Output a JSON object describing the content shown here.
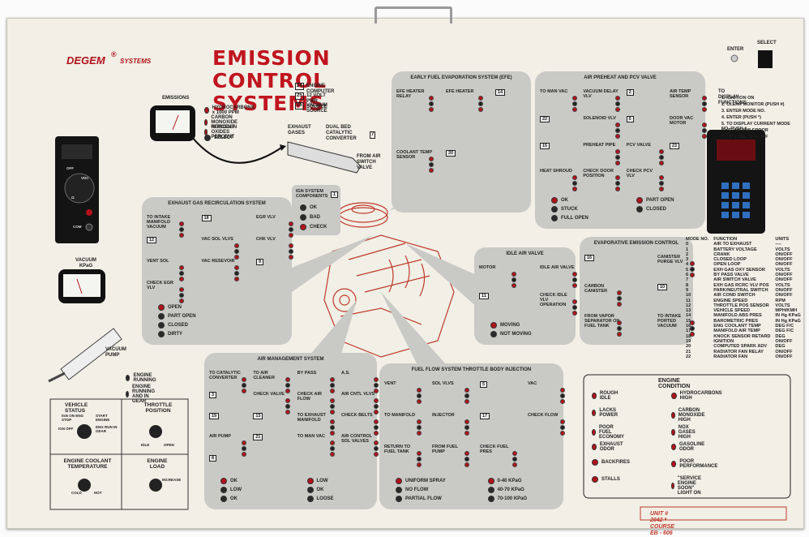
{
  "brand": {
    "name": "DEGEM",
    "reg": "®",
    "suffix": "SYSTEMS"
  },
  "title": "EMISSION CONTROL SYSTEMS",
  "controls": {
    "enter": "ENTER",
    "select": "SELECT"
  },
  "emissions": {
    "title": "EMISSIONS",
    "items": [
      "HYDROCARBONS x 1000 PPM",
      "CARBON MONOXIDE PERCENT",
      "NITROGEN OXIDES PERCENT",
      "SELECT"
    ]
  },
  "sources": [
    {
      "number": "24",
      "label": "ENGINE COMPUTER"
    },
    {
      "number": "25",
      "label": "12 VOLT PWR SOURCE"
    },
    {
      "number": "26",
      "label": "VACUUM SOURCE"
    }
  ],
  "exhaust": {
    "gases": "EXHAUST GASES",
    "converter": "DUAL BED CATALYTIC CONVERTER",
    "number": "7",
    "from": "FROM AIR SWITCH VALVE"
  },
  "ign": {
    "title": "IGN SYSTEM COMPONENTS",
    "number": "1",
    "indicators": [
      "OK",
      "BAD",
      "CHECK"
    ]
  },
  "panels": [
    {
      "title": "EARLY FUEL EVAPORATION SYSTEM (EFE)",
      "labels": [
        "EFE HEATER RELAY",
        "EFE HEATER",
        "14",
        "COOLANT TEMP SENSOR",
        "20"
      ],
      "indicators": []
    },
    {
      "title": "AIR PREHEAT AND PCV VALVE",
      "labels": [
        "TO MAN VAC",
        "VACUUM DELAY VLV",
        "2",
        "AIR TEMP SENSOR",
        "22",
        "SOLENOID VLV",
        "6",
        "DOOR VAC MOTOR",
        "15",
        "PREHEAT PIPE",
        "PCV VALVE",
        "23",
        "HEAT SHROUD",
        "CHECK DOOR POSITION",
        "CHECK PCV VLV"
      ],
      "indicators": [
        "OK",
        "STUCK",
        "FULL OPEN",
        "PART OPEN",
        "CLOSED"
      ]
    },
    {
      "title": "EXHAUST GAS RECIRCULATION SYSTEM",
      "labels": [
        "TO INTAKE MANIFOLD VACUUM",
        "18",
        "EGR VLV",
        "12",
        "VAC SOL VLVS",
        "CHK VLV",
        "VENT SOL",
        "VAC RESEVOIR",
        "9",
        "CHECK EGR VLV"
      ],
      "indicators": [
        "OPEN",
        "PART OPEN",
        "CLOSED",
        "DIRTY"
      ]
    },
    {
      "title": "IDLE AIR VALVE",
      "labels": [
        "MOTOR",
        "IDLE AIR VALVE",
        "11",
        "CHECK IDLE VLV OPERATION"
      ],
      "indicators": [
        "MOVING",
        "NOT MOVING"
      ]
    },
    {
      "title": "EVAPORATIVE EMISSION CONTROL",
      "labels": [
        "16",
        "CANISTER PURGE VLV",
        "CARBON CANISTER",
        "10",
        "FROM VAPOR SEPARATOR ON FUEL TANK",
        "TO INTAKE PORTED VACUUM"
      ],
      "indicators": []
    },
    {
      "title": "AIR MANAGEMENT SYSTEM",
      "labels": [
        "TO CATALYTIC CONVERTER",
        "TO AIR CLEANER",
        "BY PASS",
        "A.S.",
        "3",
        "CHECK VALVE",
        "CHECK AIR FLOW",
        "AIR CNTL VLVS",
        "19",
        "13",
        "TO EXHAUST MANIFOLD",
        "CHECK BELTS",
        "AIR PUMP",
        "21",
        "TO MAN VAC",
        "AIR CONTROL SOL VALVES",
        "8"
      ],
      "indicators": [
        "OK",
        "LOW",
        "OK",
        "LOW",
        "OK",
        "LOOSE"
      ]
    },
    {
      "title": "FUEL FLOW SYSTEM THROTTLE BODY INJECTION",
      "labels": [
        "VENT",
        "SOL VLVS",
        "5",
        "VAC",
        "TO MANIFOLD",
        "INJECTOR",
        "17",
        "CHECK FLOW",
        "RETURN TO FUEL TANK",
        "FROM FUEL PUMP",
        "CHECK FUEL PRES"
      ],
      "indicators": [
        "UNIFORM SPRAY",
        "NO FLOW",
        "PARTIAL FLOW",
        "0-40 KPaG",
        "40-70 KPaG",
        "70-100 KPaG"
      ]
    }
  ],
  "display_functions": {
    "title": "TO DISPLAY FUNCTIONS",
    "steps": [
      "1. IGNITION ON",
      "2. CLEAR MONITOR (PUSH #)",
      "3. ENTER MODE NO.",
      "4. ENTER (PUSH *)",
      "5. TO DISPLAY CURRENT MODE NO. PUSH #",
      "6. \"E\" MEANS ERROR",
      "7. \"1\" = ON, \"0\" = OFF"
    ]
  },
  "mode_table": {
    "headers": [
      "MODE NO.",
      "FUNCTION",
      "UNITS"
    ],
    "rows": [
      [
        "0",
        "AIR TO EXHAUST",
        "----"
      ],
      [
        "1",
        "BATTERY VOLTAGE",
        "VOLTS"
      ],
      [
        "2",
        "CRANK",
        "ON/OFF"
      ],
      [
        "3",
        "CLOSED LOOP",
        "ON/OFF"
      ],
      [
        "4",
        "OPEN LOOP",
        "ON/OFF"
      ],
      [
        "5",
        "EXH GAS OXY SENSOR",
        "VOLTS"
      ],
      [
        "6",
        "BY PASS VALVE",
        "ON/OFF"
      ],
      [
        "7",
        "AIR SWITCH VALVE",
        "ON/OFF"
      ],
      [
        "8",
        "EXH GAS RCRC VLV POS",
        "VOLTS"
      ],
      [
        "9",
        "PARK/NEUTRAL SWITCH",
        "ON/OFF"
      ],
      [
        "10",
        "AIR COND SWITCH",
        "ON/OFF"
      ],
      [
        "11",
        "ENGINE SPEED",
        "RPM"
      ],
      [
        "12",
        "THROTTLE POS SENSOR",
        "VOLTS"
      ],
      [
        "13",
        "VEHICLE SPEED",
        "MPH/KMH"
      ],
      [
        "14",
        "MANIFOLD ABS PRES",
        "IN Hg KPaG"
      ],
      [
        "15",
        "BAROMETRIC PRES",
        "IN Hg KPaG"
      ],
      [
        "16",
        "ENG COOLANT TEMP",
        "DEG F/C"
      ],
      [
        "17",
        "MANIFOLD AIR TEMP",
        "DEG F/C"
      ],
      [
        "18",
        "KNOCK SENSOR RETARD",
        "DEG"
      ],
      [
        "19",
        "IGNITION",
        "ON/OFF"
      ],
      [
        "20",
        "COMPUTED SPARK ADV",
        "DEG"
      ],
      [
        "21",
        "RADIATOR FAN RELAY",
        "ON/OFF"
      ],
      [
        "22",
        "RADIATOR FAN",
        "ON/OFF"
      ]
    ]
  },
  "engine_condition": {
    "title": "ENGINE CONDITION",
    "items": [
      "ROUGH IDLE",
      "LACKS POWER",
      "POOR FUEL ECONOMY",
      "EXHAUST ODOR",
      "BACKFIRES",
      "STALLS",
      "HYDROCARBONS HIGH",
      "CARBON MONOXIDE HIGH",
      "NOX GASES HIGH",
      "GASOLINE ODOR",
      "POOR PERFORMANCE",
      "\"SERVICE ENGINE SOON\" LIGHT ON"
    ]
  },
  "vacuum": {
    "gauge": "VACUUM KPaG",
    "pump": "VACUUM PUMP"
  },
  "engine_status": [
    "ENGINE RUNNING",
    "ENGINE RUNNING AND IN GEAR"
  ],
  "vehicle_status": {
    "title": "VEHICLE STATUS",
    "labels": [
      "IGN ON ENG STOP",
      "START ENGINE",
      "IGN OFF",
      "ENG RUN IN GEAR"
    ]
  },
  "throttle": {
    "title": "THROTTLE POSITION",
    "labels": [
      "IDLE",
      "OPEN"
    ]
  },
  "coolant": {
    "title": "ENGINE COOLANT TEMPERATURE",
    "labels": [
      "COLD",
      "HOT"
    ]
  },
  "load": {
    "title": "ENGINE LOAD",
    "labels": [
      "INCREASE"
    ]
  },
  "meter": {
    "labels": [
      "OFF",
      "VDC",
      "Ω",
      "COM"
    ]
  },
  "unit": "UNIT # 2042 * COURSE EB - 606"
}
